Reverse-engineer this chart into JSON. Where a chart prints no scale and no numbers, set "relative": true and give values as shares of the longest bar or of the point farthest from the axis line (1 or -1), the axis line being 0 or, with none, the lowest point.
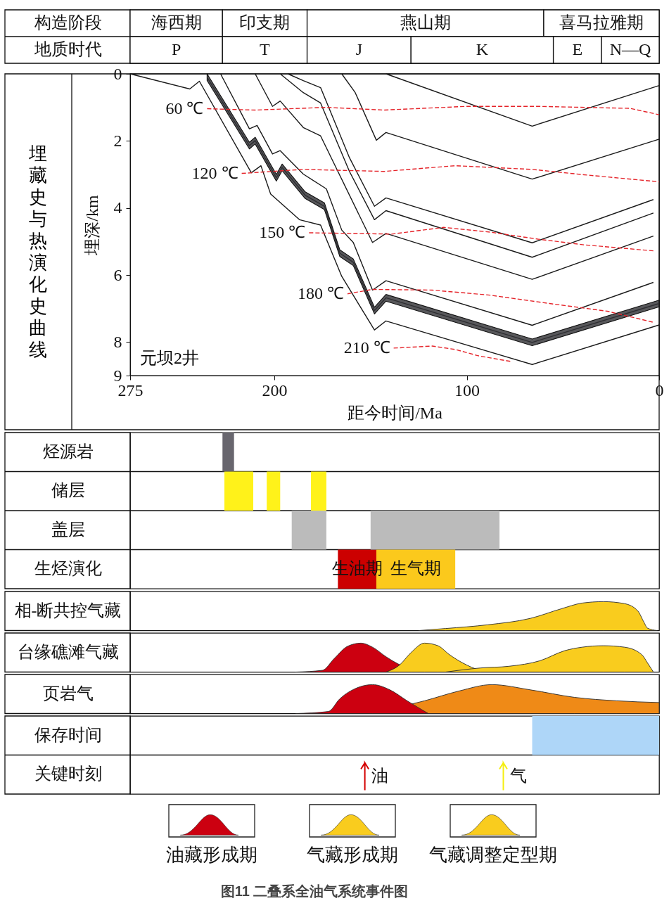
{
  "chart_data": [
    {
      "type": "bar",
      "orientation": "horizontal",
      "categories": [
        "构造阶段",
        "地质时代"
      ],
      "xlim": [
        275,
        0
      ],
      "tick_labels": "y",
      "series": [
        {
          "color": "#ffffff",
          "base": [
            227,
            227
          ],
          "values": [
            48,
            48
          ],
          "value_labels": [
            "海西期",
            "P"
          ]
        },
        {
          "color": "#ffffff",
          "base": [
            183,
            183
          ],
          "values": [
            44,
            44
          ],
          "value_labels": [
            "印支期",
            "T"
          ]
        },
        {
          "color": "#ffffff",
          "base": [
            60,
            129
          ],
          "values": [
            123,
            54
          ],
          "value_labels": [
            "燕山期",
            "J"
          ]
        },
        {
          "color": "#ffffff",
          "base": [
            0,
            55
          ],
          "values": [
            60,
            74
          ],
          "value_labels": [
            "喜马拉雅期",
            "K"
          ]
        },
        {
          "color": "#ffffff",
          "base": [
            null,
            30
          ],
          "values": [
            null,
            25
          ],
          "value_labels": [
            null,
            "E"
          ]
        },
        {
          "color": "#ffffff",
          "base": [
            null,
            0
          ],
          "values": [
            null,
            30
          ],
          "value_labels": [
            null,
            "N—Q"
          ]
        }
      ]
    },
    {
      "type": "line",
      "title": "埋藏史与热演化史曲线",
      "xlabel": "距今时间/Ma",
      "ylabel": "埋深/km",
      "xlim": [
        275,
        0
      ],
      "ylim": [
        9,
        0
      ],
      "xticks": [
        275,
        200,
        100,
        0
      ],
      "yticks": [
        0,
        2,
        4,
        6,
        8,
        9
      ],
      "annotations": [
        "元坝2井"
      ],
      "series": [
        {
          "color": "#1a1a1a",
          "line_style": "solid",
          "x": [
            275,
            244,
            239,
            212,
            207,
            202,
            187,
            176,
            165,
            148,
            142,
            66,
            0
          ],
          "values": [
            0,
            0.45,
            0.22,
            2.95,
            2.74,
            3.58,
            4.35,
            4.51,
            6.04,
            7.64,
            7.37,
            8.67,
            7.49
          ]
        },
        {
          "color": "#2e2e32",
          "line_style": "solid",
          "x": [
            235,
            213,
            210,
            199,
            196,
            184,
            174,
            166,
            159,
            148,
            142,
            66,
            0
          ],
          "values": [
            0.1,
            2.14,
            1.99,
            3.1,
            2.79,
            3.62,
            3.95,
            5.35,
            5.62,
            7.06,
            6.68,
            8.01,
            6.85
          ],
          "lower": [
            0,
            2.04,
            1.89,
            3.0,
            2.69,
            3.52,
            3.85,
            5.25,
            5.52,
            6.96,
            6.58,
            7.91,
            6.75
          ],
          "upper": [
            0.2,
            2.24,
            2.09,
            3.2,
            2.89,
            3.72,
            4.05,
            5.45,
            5.72,
            7.16,
            6.78,
            8.11,
            6.95
          ]
        },
        {
          "color": "#1a1a1a",
          "line_style": "solid",
          "x": [
            228,
            213,
            209,
            201,
            197,
            185,
            173,
            165,
            159,
            149,
            142,
            66,
            3
          ],
          "values": [
            0,
            1.64,
            1.54,
            2.39,
            2.29,
            2.99,
            3.43,
            4.66,
            5.03,
            6.45,
            6.17,
            7.5,
            6.22
          ]
        },
        {
          "color": "#1a1a1a",
          "line_style": "solid",
          "x": [
            210,
            201,
            197,
            185,
            176,
            167,
            149,
            142,
            66,
            3
          ],
          "values": [
            0,
            0.97,
            0.81,
            1.6,
            1.85,
            2.91,
            5.03,
            4.76,
            6.13,
            4.84
          ]
        },
        {
          "color": "#1a1a1a",
          "line_style": "solid",
          "x": [
            197,
            185,
            176,
            161,
            148,
            142,
            66,
            3
          ],
          "values": [
            0,
            0.56,
            0.87,
            2.91,
            4.35,
            4.08,
            5.47,
            4.15
          ]
        },
        {
          "color": "#1a1a1a",
          "line_style": "solid",
          "x": [
            193,
            185,
            176,
            161,
            148,
            142,
            66,
            3
          ],
          "values": [
            0,
            0.2,
            0.41,
            2.5,
            3.95,
            3.7,
            5.04,
            3.75
          ]
        },
        {
          "color": "#1a1a1a",
          "line_style": "solid",
          "x": [
            165,
            158,
            147,
            142,
            66,
            0
          ],
          "values": [
            0,
            0.56,
            1.98,
            1.75,
            3.14,
            1.95
          ]
        },
        {
          "color": "#1a1a1a",
          "line_style": "solid",
          "x": [
            142,
            66,
            0
          ],
          "values": [
            0,
            1.56,
            0.35
          ]
        },
        {
          "name": "60 ℃",
          "color": "#e5242a",
          "line_style": "dashed",
          "x": [
            235,
            210,
            173,
            143,
            100,
            63,
            15,
            0
          ],
          "values": [
            1.04,
            1.08,
            1.0,
            1.08,
            0.97,
            0.97,
            1.03,
            1.22
          ]
        },
        {
          "name": "120 ℃",
          "color": "#e5242a",
          "line_style": "dashed",
          "x": [
            217,
            185,
            143,
            106,
            66,
            39,
            0
          ],
          "values": [
            2.97,
            2.85,
            2.91,
            2.74,
            2.85,
            3.01,
            3.22
          ]
        },
        {
          "name": "150 ℃",
          "color": "#e5242a",
          "line_style": "dashed",
          "x": [
            182,
            139,
            112,
            88,
            63,
            39,
            3
          ],
          "values": [
            4.74,
            4.78,
            4.58,
            4.72,
            4.93,
            5.1,
            5.28
          ]
        },
        {
          "name": "180 ℃",
          "color": "#e5242a",
          "line_style": "dashed",
          "x": [
            162,
            149,
            118,
            88,
            57,
            27,
            3
          ],
          "values": [
            6.56,
            6.43,
            6.45,
            6.6,
            6.85,
            7.08,
            7.41
          ]
        },
        {
          "name": "210 ℃",
          "color": "#e5242a",
          "line_style": "dashed",
          "x": [
            138,
            118,
            106,
            94,
            77
          ],
          "values": [
            8.18,
            8.12,
            8.22,
            8.41,
            8.58
          ]
        }
      ]
    },
    {
      "type": "bar",
      "orientation": "horizontal",
      "categories": [
        "烃源岩",
        "储层",
        "盖层",
        "生烃演化"
      ],
      "xlim": [
        275,
        0
      ],
      "tick_labels": "y",
      "grid": "y",
      "series": [
        {
          "colors": [
            "#68666e",
            "#fff21a",
            "#bbbbbb",
            "#cc0000"
          ],
          "base": [
            221,
            211,
            173,
            147
          ],
          "values": [
            6,
            15,
            18,
            20
          ],
          "value_labels": [
            null,
            null,
            null,
            "生油期"
          ]
        },
        {
          "colors": [
            null,
            "#fff21a",
            "#bbbbbb",
            "#fbc91c"
          ],
          "base": [
            null,
            197,
            83,
            106
          ],
          "values": [
            null,
            7,
            67,
            41
          ],
          "value_labels": [
            null,
            null,
            null,
            "生气期"
          ]
        },
        {
          "colors": [
            null,
            "#fff21a",
            null,
            null
          ],
          "base": [
            null,
            173,
            null,
            null
          ],
          "values": [
            null,
            8,
            null,
            null
          ]
        }
      ]
    },
    {
      "type": "area",
      "relative": true,
      "ylabel": "相-断共控气藏",
      "xlim": [
        275,
        0
      ],
      "tick_labels": false,
      "series": [
        {
          "color": "#f9cc1e",
          "x": [
            125,
            111,
            89,
            67,
            51,
            40,
            29,
            18,
            11,
            8,
            6,
            1
          ],
          "values": [
            0,
            0.07,
            0.2,
            0.42,
            0.75,
            0.95,
            1,
            0.93,
            0.67,
            0.3,
            0.08,
            0
          ]
        }
      ]
    },
    {
      "type": "area",
      "relative": true,
      "ylabel": "台缘礁滩气藏",
      "xlim": [
        275,
        0
      ],
      "tick_labels": false,
      "legend": "bottom",
      "series": [
        {
          "name": "油藏形成期",
          "color": "#cc0010",
          "x": [
            189,
            175,
            169,
            162,
            155,
            149,
            142,
            136,
            125
          ],
          "values": [
            0,
            0.06,
            0.46,
            0.89,
            1,
            0.86,
            0.53,
            0.29,
            0
          ]
        },
        {
          "name": "气藏形成期",
          "color": "#f9cc1e",
          "x": [
            142,
            135,
            129,
            122,
            115,
            109,
            102,
            93,
            87
          ],
          "values": [
            0,
            0.24,
            0.67,
            1,
            0.91,
            0.6,
            0.31,
            0.06,
            0
          ]
        },
        {
          "name": "气藏调整定型期",
          "color": "#f9cc1e",
          "x": [
            111,
            93,
            78,
            62,
            49,
            40,
            29,
            18,
            9,
            6,
            3
          ],
          "values": [
            0,
            0.14,
            0.2,
            0.39,
            0.74,
            0.86,
            0.91,
            0.86,
            0.6,
            0.31,
            0
          ]
        }
      ]
    },
    {
      "type": "area",
      "relative": true,
      "ylabel": "页岩气",
      "xlim": [
        275,
        0
      ],
      "tick_labels": false,
      "series": [
        {
          "color": "#ef8a17",
          "x": [
            151,
            122,
            104,
            87,
            67,
            44,
            22,
            0
          ],
          "values": [
            0,
            0.44,
            0.78,
            1,
            0.82,
            0.56,
            0.44,
            0.38
          ]
        },
        {
          "color": "#cc0010",
          "x": [
            189,
            172,
            166,
            157,
            149,
            140,
            131,
            120
          ],
          "values": [
            0,
            0.07,
            0.51,
            0.89,
            1,
            0.82,
            0.44,
            0
          ]
        }
      ]
    },
    {
      "type": "bar",
      "orientation": "horizontal",
      "categories": [
        "保存时间",
        "关键时刻"
      ],
      "xlim": [
        275,
        0
      ],
      "tick_labels": "y",
      "grid": "y",
      "series": [
        {
          "color": "#aed6f8",
          "base": [
            0,
            null
          ],
          "values": [
            66,
            null
          ]
        }
      ],
      "ref_lines": [
        {
          "axis": "x",
          "value": 153,
          "label": "油",
          "color": "#d40000"
        },
        {
          "axis": "x",
          "value": 81,
          "label": "气",
          "color": "#f5ee10"
        }
      ],
      "annotations": [
        "图11 二叠系全油气系统事件图"
      ]
    }
  ]
}
